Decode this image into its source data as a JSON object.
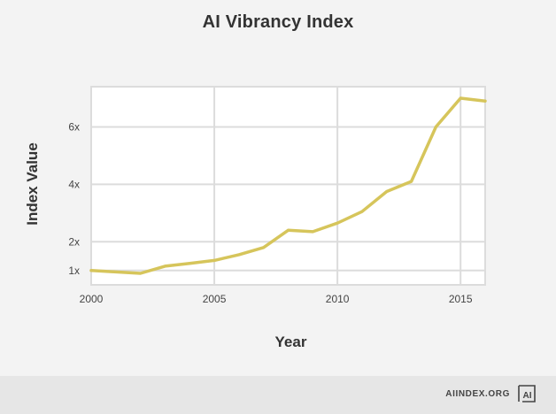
{
  "chart_data": {
    "type": "line",
    "title": "AI Vibrancy Index",
    "xlabel": "Year",
    "ylabel": "Index Value",
    "x_range": [
      2000,
      2016
    ],
    "y_range": [
      0.5,
      7.4
    ],
    "x_ticks": [
      2000,
      2005,
      2010,
      2015
    ],
    "y_ticks": [
      {
        "value": 1,
        "label": "1x"
      },
      {
        "value": 2,
        "label": "2x"
      },
      {
        "value": 4,
        "label": "4x"
      },
      {
        "value": 6,
        "label": "6x"
      }
    ],
    "grid": true,
    "line_color": "#d6c55b",
    "series": [
      {
        "x": [
          2000,
          2001,
          2002,
          2003,
          2004,
          2005,
          2006,
          2007,
          2008,
          2009,
          2010,
          2011,
          2012,
          2013,
          2014,
          2015,
          2016
        ],
        "y": [
          1.0,
          0.95,
          0.9,
          1.15,
          1.25,
          1.35,
          1.55,
          1.8,
          2.4,
          2.35,
          2.65,
          3.05,
          3.75,
          4.1,
          6.0,
          7.0,
          6.9
        ]
      }
    ]
  },
  "footer": {
    "brand": "AIINDEX.ORG",
    "logo_text": "AI"
  }
}
